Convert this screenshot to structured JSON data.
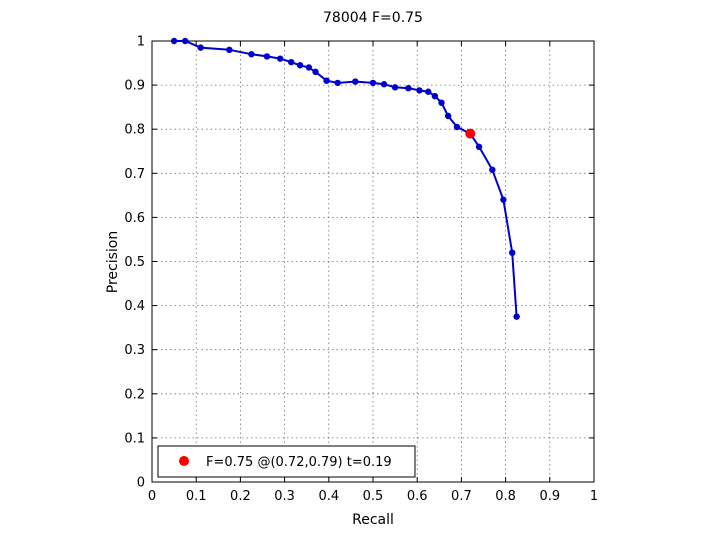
{
  "chart_data": {
    "type": "line",
    "title": "78004 F=0.75",
    "xlabel": "Recall",
    "ylabel": "Precision",
    "xlim": [
      0,
      1
    ],
    "ylim": [
      0,
      1
    ],
    "grid": true,
    "xticks": [
      "0",
      "0.1",
      "0.2",
      "0.3",
      "0.4",
      "0.5",
      "0.6",
      "0.7",
      "0.8",
      "0.9",
      "1"
    ],
    "yticks": [
      "0",
      "0.1",
      "0.2",
      "0.3",
      "0.4",
      "0.5",
      "0.6",
      "0.7",
      "0.8",
      "0.9",
      "1"
    ],
    "legend_position": "bottom-left",
    "series": [
      {
        "color": "#0000cc",
        "marker": "dot",
        "points": [
          [
            0.05,
            1.0
          ],
          [
            0.075,
            1.0
          ],
          [
            0.11,
            0.985
          ],
          [
            0.175,
            0.98
          ],
          [
            0.225,
            0.97
          ],
          [
            0.26,
            0.965
          ],
          [
            0.29,
            0.96
          ],
          [
            0.315,
            0.952
          ],
          [
            0.335,
            0.945
          ],
          [
            0.355,
            0.94
          ],
          [
            0.37,
            0.93
          ],
          [
            0.395,
            0.91
          ],
          [
            0.42,
            0.905
          ],
          [
            0.46,
            0.908
          ],
          [
            0.5,
            0.905
          ],
          [
            0.525,
            0.902
          ],
          [
            0.55,
            0.895
          ],
          [
            0.58,
            0.893
          ],
          [
            0.605,
            0.888
          ],
          [
            0.625,
            0.885
          ],
          [
            0.64,
            0.875
          ],
          [
            0.655,
            0.86
          ],
          [
            0.67,
            0.83
          ],
          [
            0.69,
            0.805
          ],
          [
            0.72,
            0.79
          ],
          [
            0.74,
            0.76
          ],
          [
            0.77,
            0.708
          ],
          [
            0.795,
            0.64
          ],
          [
            0.815,
            0.52
          ],
          [
            0.825,
            0.375
          ]
        ]
      }
    ],
    "highlight": {
      "color": "#ff0000",
      "recall": 0.72,
      "precision": 0.79,
      "f": 0.75,
      "threshold": 0.19,
      "legend_label": "F=0.75 @(0.72,0.79) t=0.19"
    }
  }
}
